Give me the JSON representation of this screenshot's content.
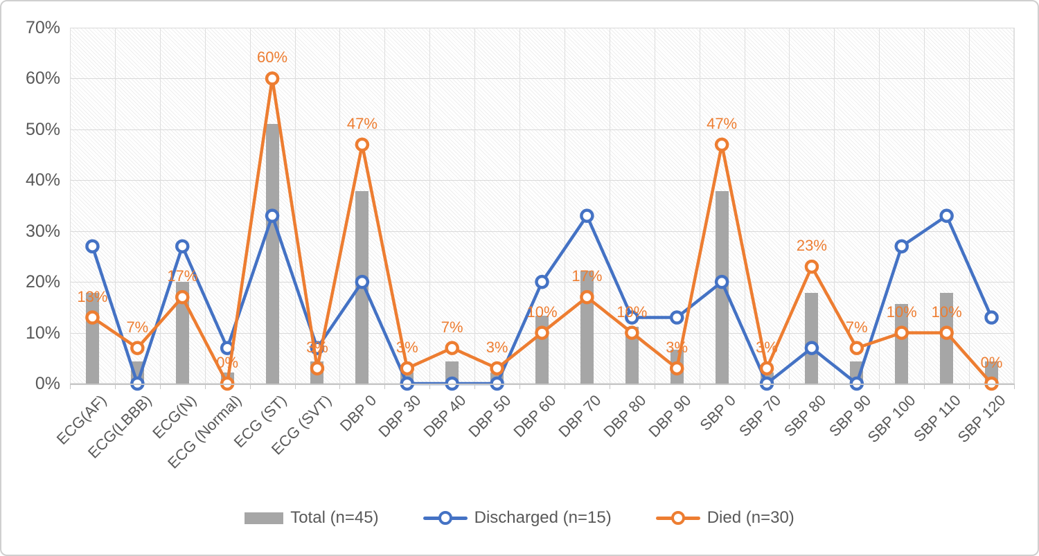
{
  "chart_data": {
    "type": "combo-bar-line",
    "title": "",
    "categories": [
      "ECG(AF)",
      "ECG(LBBB)",
      "ECG(N)",
      "ECG (Normal)",
      "ECG (ST)",
      "ECG (SVT)",
      "DBP 0",
      "DBP 30",
      "DBP 40",
      "DBP 50",
      "DBP 60",
      "DBP 70",
      "DBP 80",
      "DBP 90",
      "SBP 0",
      "SBP 70",
      "SBP 80",
      "SBP 90",
      "SBP 100",
      "SBP 110",
      "SBP 120"
    ],
    "series": [
      {
        "name": "Total (n=45)",
        "type": "bar",
        "color": "#A6A6A6",
        "values": [
          17.8,
          4.4,
          20,
          2.2,
          51.1,
          4.4,
          37.8,
          2.2,
          4.4,
          2.2,
          13.3,
          22.2,
          11.1,
          6.7,
          37.8,
          2.2,
          17.8,
          4.4,
          15.6,
          17.8,
          4.4
        ]
      },
      {
        "name": "Discharged (n=15)",
        "type": "line",
        "marker": "circle",
        "color": "#4472C4",
        "values": [
          27,
          0,
          27,
          7,
          33,
          7,
          20,
          0,
          0,
          0,
          20,
          33,
          13,
          13,
          20,
          0,
          7,
          0,
          27,
          33,
          13
        ]
      },
      {
        "name": "Died (n=30)",
        "type": "line",
        "marker": "circle",
        "color": "#ED7D31",
        "values": [
          13,
          7,
          17,
          0,
          60,
          3,
          47,
          3,
          7,
          3,
          10,
          17,
          10,
          3,
          47,
          3,
          23,
          7,
          10,
          10,
          0
        ],
        "data_labels": [
          "13%",
          "7%",
          "17%",
          "0%",
          "60%",
          "3%",
          "47%",
          "3%",
          "7%",
          "3%",
          "10%",
          "17%",
          "10%",
          "3%",
          "47%",
          "3%",
          "23%",
          "7%",
          "10%",
          "10%",
          "0%"
        ]
      }
    ],
    "y_axis": {
      "min": 0,
      "max": 70,
      "step": 10,
      "tick_labels": [
        "0%",
        "10%",
        "20%",
        "30%",
        "40%",
        "50%",
        "60%",
        "70%"
      ]
    },
    "x_axis": {
      "label_rotation": -45
    },
    "legend": {
      "position": "bottom"
    },
    "grid": {
      "horizontal": true,
      "vertical": true,
      "color": "#D9D9D9"
    },
    "plot_background": "diagonal-hatch",
    "styles": {
      "bar_color": "#A6A6A6",
      "discharged_color": "#4472C4",
      "died_color": "#ED7D31",
      "axis_text_color": "#595959",
      "data_label_color": "#ED7D31"
    }
  }
}
